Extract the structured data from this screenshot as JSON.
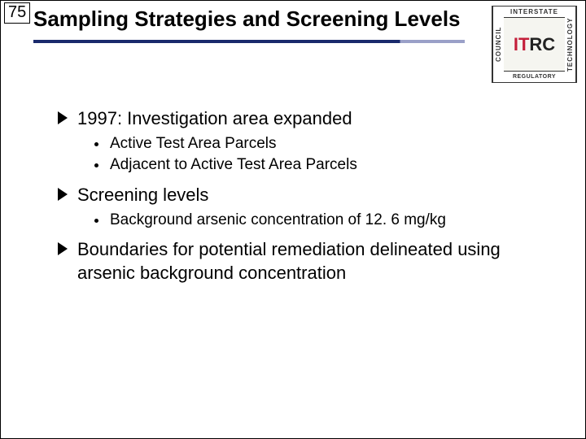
{
  "pageNumber": "75",
  "title": "Sampling Strategies and Screening Levels",
  "logo": {
    "left": "COUNCIL",
    "top": "INTERSTATE",
    "center1": "IT",
    "center2": "RC",
    "right": "TECHNOLOGY",
    "bottom": "REGULATORY"
  },
  "bullets": [
    {
      "text": "1997: Investigation area expanded",
      "sub": [
        "Active Test Area Parcels",
        "Adjacent to Active Test Area Parcels"
      ]
    },
    {
      "text": "Screening levels",
      "sub": [
        "Background arsenic concentration of 12. 6 mg/kg"
      ]
    },
    {
      "text": "Boundaries for potential remediation delineated using arsenic background concentration",
      "sub": []
    }
  ],
  "colors": {
    "underline_main": "#1a2a6c",
    "underline_fade": "#9aa0c8",
    "logo_red": "#c41e3a"
  }
}
